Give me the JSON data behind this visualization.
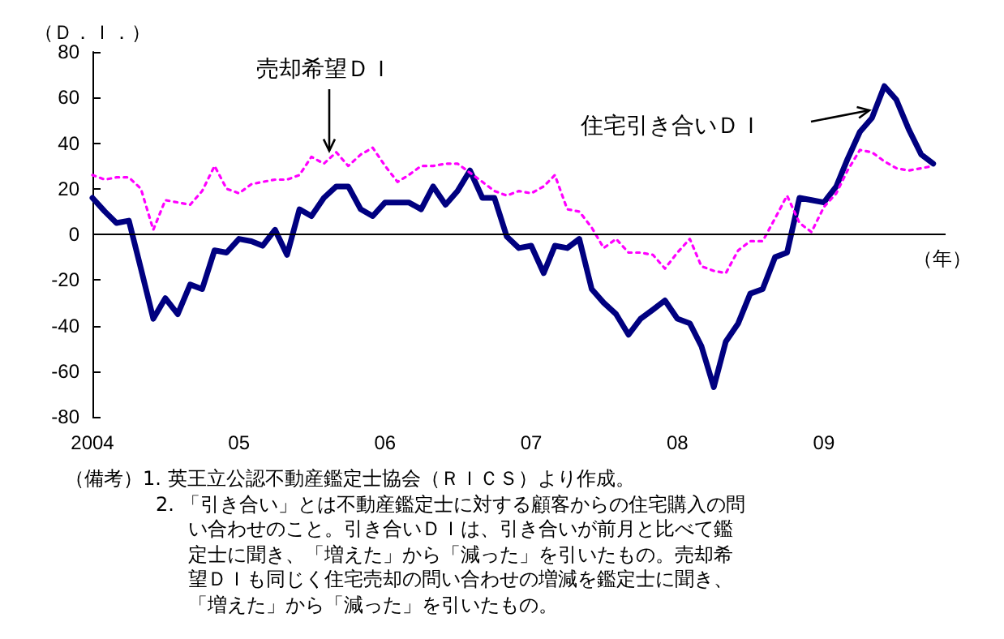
{
  "chart_data": {
    "type": "line",
    "ylabel": "（Ｄ．Ｉ．）",
    "xlabel": "（年）",
    "x": [
      "2004-01",
      "2004-02",
      "2004-03",
      "2004-04",
      "2004-05",
      "2004-06",
      "2004-07",
      "2004-08",
      "2004-09",
      "2004-10",
      "2004-11",
      "2004-12",
      "2005-01",
      "2005-02",
      "2005-03",
      "2005-04",
      "2005-05",
      "2005-06",
      "2005-07",
      "2005-08",
      "2005-09",
      "2005-10",
      "2005-11",
      "2005-12",
      "2006-01",
      "2006-02",
      "2006-03",
      "2006-04",
      "2006-05",
      "2006-06",
      "2006-07",
      "2006-08",
      "2006-09",
      "2006-10",
      "2006-11",
      "2006-12",
      "2007-01",
      "2007-02",
      "2007-03",
      "2007-04",
      "2007-05",
      "2007-06",
      "2007-07",
      "2007-08",
      "2007-09",
      "2007-10",
      "2007-11",
      "2007-12",
      "2008-01",
      "2008-02",
      "2008-03",
      "2008-04",
      "2008-05",
      "2008-06",
      "2008-07",
      "2008-08",
      "2008-09",
      "2008-10",
      "2008-11",
      "2008-12",
      "2009-01",
      "2009-02",
      "2009-03",
      "2009-04",
      "2009-05",
      "2009-06",
      "2009-07",
      "2009-08",
      "2009-09",
      "2009-10"
    ],
    "series": [
      {
        "color": "#000080",
        "line_style": "solid",
        "values": [
          16,
          10,
          5,
          6,
          -15,
          -37,
          -28,
          -35,
          -22,
          -24,
          -7,
          -8,
          -2,
          -3,
          -5,
          2,
          -9,
          11,
          8,
          16,
          21,
          21,
          11,
          8,
          14,
          14,
          14,
          11,
          21,
          13,
          19,
          28,
          16,
          16,
          -1,
          -6,
          -5,
          -17,
          -5,
          -6,
          -2,
          -24,
          -30,
          -35,
          -44,
          -37,
          -33,
          -29,
          -37,
          -39,
          -49,
          -67,
          -47,
          -39,
          -26,
          -24,
          -10,
          -8,
          16,
          15,
          14,
          21,
          33,
          45,
          51,
          65,
          59,
          46,
          35,
          31
        ]
      },
      {
        "color": "#ff00ff",
        "line_style": "dotted",
        "values": [
          26,
          24,
          25,
          25,
          20,
          2,
          15,
          14,
          13,
          19,
          30,
          20,
          18,
          22,
          23,
          24,
          24,
          26,
          34,
          31,
          36,
          30,
          35,
          38,
          30,
          23,
          26,
          30,
          30,
          31,
          31,
          27,
          23,
          19,
          17,
          19,
          18,
          21,
          26,
          11,
          10,
          3,
          -6,
          -2,
          -8,
          -8,
          -9,
          -15,
          -8,
          -2,
          -14,
          -16,
          -17,
          -7,
          -3,
          -3,
          7,
          17,
          5,
          1,
          12,
          18,
          28,
          37,
          36,
          32,
          29,
          28,
          29,
          30
        ]
      }
    ],
    "xlim": [
      "2004-01",
      "2009-11"
    ],
    "xticks": [
      {
        "value": "2004-01",
        "label": "2004"
      },
      {
        "value": "2005-01",
        "label": "05"
      },
      {
        "value": "2006-01",
        "label": "06"
      },
      {
        "value": "2007-01",
        "label": "07"
      },
      {
        "value": "2008-01",
        "label": "08"
      },
      {
        "value": "2009-01",
        "label": "09"
      }
    ],
    "ylim": [
      -80,
      80
    ],
    "yticks": [
      -80,
      -60,
      -40,
      -20,
      0,
      20,
      40,
      60,
      80
    ],
    "ref_lines": [
      {
        "axis": "y",
        "value": 0,
        "color": "#000000"
      }
    ],
    "grid": false,
    "marker": "none",
    "annotations": [
      "売却希望ＤＩ",
      "住宅引き合いＤＩ",
      "（備考）1. 英王立公認不動産鑑定士協会（ＲＩＣＳ）より作成。",
      "2. 「引き合い」とは不動産鑑定士に対する顧客からの住宅購入の問い合わせのこと。引き合いＤＩは、引き合いが前月と比べて鑑定士に聞き、「増えた」から「減った」を引いたもの。売却希望ＤＩも同じく住宅売却の問い合わせの増減を鑑定士に聞き、「増えた」から「減った」を引いたもの。"
    ]
  }
}
